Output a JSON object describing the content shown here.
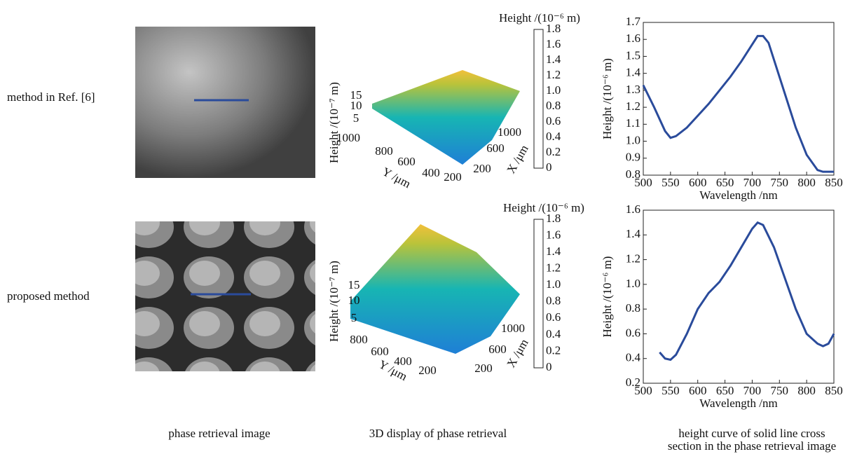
{
  "row_labels": [
    "method in Ref. [6]",
    "proposed method"
  ],
  "captions": [
    "phase retrieval image",
    "3D display of phase retrieval",
    "height curve of solid line cross",
    "section in the phase retrieval image"
  ],
  "surface_plots": [
    {
      "colorbar_title": "Height /(10⁻⁶ m)",
      "colorbar_ticks": [
        "0",
        "0.2",
        "0.4",
        "0.6",
        "0.8",
        "1.0",
        "1.2",
        "1.4",
        "1.6",
        "1.8"
      ],
      "z_label": "Height /(10⁻⁷ m)",
      "z_ticks": [
        "15",
        "10",
        "5"
      ],
      "y_label": "Y /μm",
      "y_ticks": [
        "1000",
        "800",
        "600",
        "400",
        "200"
      ],
      "x_label": "X /μm",
      "x_ticks": [
        "200",
        "600",
        "1000"
      ]
    },
    {
      "colorbar_title": "Height /(10⁻⁶ m)",
      "colorbar_ticks": [
        "0",
        "0.2",
        "0.4",
        "0.6",
        "0.8",
        "1.0",
        "1.2",
        "1.4",
        "1.6",
        "1.8"
      ],
      "z_label": "Height /(10⁻⁷ m)",
      "z_ticks": [
        "15",
        "10",
        "5"
      ],
      "y_label": "Y /μm",
      "y_ticks": [
        "800",
        "600",
        "400",
        "200"
      ],
      "x_label": "X /μm",
      "x_ticks": [
        "200",
        "600",
        "1000"
      ]
    }
  ],
  "chart_data": [
    {
      "type": "line",
      "x_label": "Wavelength /nm",
      "y_label": "Height /(10⁻⁶ m)",
      "x": [
        500,
        520,
        540,
        550,
        560,
        580,
        600,
        620,
        640,
        660,
        680,
        700,
        710,
        720,
        730,
        740,
        760,
        780,
        800,
        820,
        830,
        850
      ],
      "series": [
        {
          "color": "#2a4b9b",
          "values": [
            1.33,
            1.2,
            1.06,
            1.02,
            1.03,
            1.08,
            1.15,
            1.22,
            1.3,
            1.38,
            1.47,
            1.57,
            1.62,
            1.62,
            1.58,
            1.48,
            1.28,
            1.08,
            0.92,
            0.83,
            0.82,
            0.82
          ]
        }
      ],
      "xlim": [
        500,
        850
      ],
      "xticks": [
        500,
        550,
        600,
        650,
        700,
        750,
        800,
        850
      ],
      "ylim": [
        0.8,
        1.7
      ],
      "yticks": [
        0.8,
        0.9,
        {
          "value": 1,
          "label": "1.0"
        },
        1.1,
        1.2,
        1.3,
        1.4,
        1.5,
        1.6,
        1.7
      ]
    },
    {
      "type": "line",
      "x_label": "Wavelength /nm",
      "y_label": "Height /(10⁻⁶ m)",
      "x": [
        530,
        540,
        550,
        560,
        580,
        600,
        620,
        640,
        660,
        680,
        700,
        710,
        720,
        740,
        760,
        780,
        800,
        820,
        830,
        840,
        850
      ],
      "series": [
        {
          "color": "#2a4b9b",
          "values": [
            0.45,
            0.4,
            0.39,
            0.43,
            0.6,
            0.8,
            0.93,
            1.02,
            1.15,
            1.3,
            1.45,
            1.5,
            1.48,
            1.3,
            1.05,
            0.8,
            0.6,
            0.52,
            0.5,
            0.52,
            0.6
          ]
        }
      ],
      "xlim": [
        500,
        850
      ],
      "xticks": [
        500,
        550,
        600,
        650,
        700,
        750,
        800,
        850
      ],
      "ylim": [
        0.2,
        1.6
      ],
      "yticks": [
        0.2,
        0.4,
        0.6,
        0.8,
        {
          "value": 1,
          "label": "1.0"
        },
        1.2,
        1.4,
        1.6
      ]
    }
  ]
}
